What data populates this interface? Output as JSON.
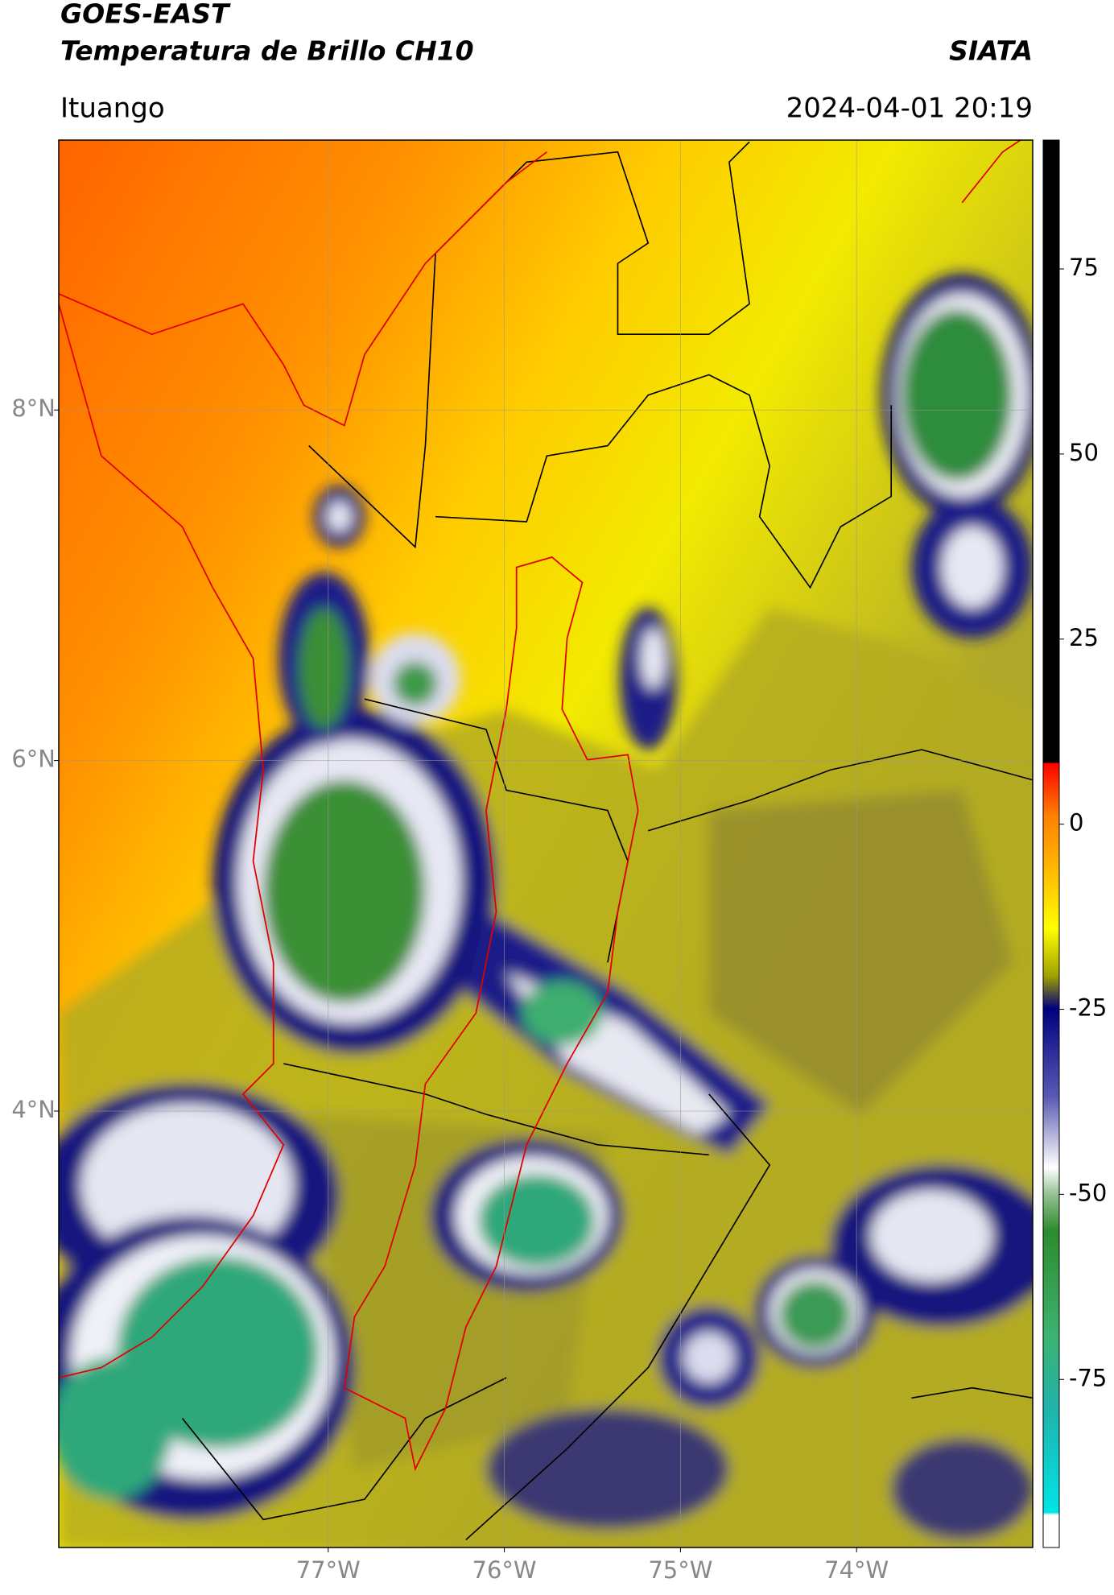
{
  "header": {
    "title": "GOES-EAST",
    "subtitle": "Temperatura de Brillo CH10",
    "brand": "SIATA",
    "location": "Ituango",
    "timestamp": "2024-04-01 20:19"
  },
  "map": {
    "xlim": [
      -78.53,
      -73.0
    ],
    "ylim": [
      1.51,
      9.54
    ],
    "xticks": [
      {
        "value": -77,
        "label": "77°W"
      },
      {
        "value": -76,
        "label": "76°W"
      },
      {
        "value": -75,
        "label": "75°W"
      },
      {
        "value": -74,
        "label": "74°W"
      }
    ],
    "yticks": [
      {
        "value": 8,
        "label": "8°N"
      },
      {
        "value": 6,
        "label": "6°N"
      },
      {
        "value": 4,
        "label": "4°N"
      }
    ]
  },
  "colorbar": {
    "clim": [
      -97.7,
      92.4
    ],
    "ticks": [
      75,
      50,
      25,
      0,
      -25,
      -50,
      -75
    ]
  }
}
